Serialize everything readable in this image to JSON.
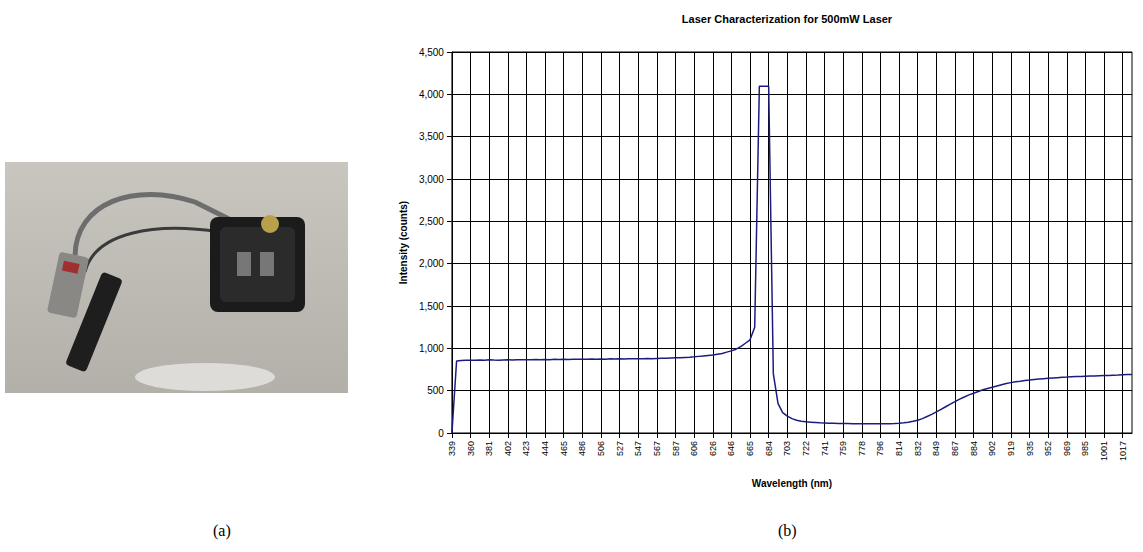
{
  "panels": {
    "a": {
      "label": "(a)"
    },
    "b": {
      "label": "(b)"
    }
  },
  "chart_data": {
    "type": "line",
    "title": "Laser Characterization for 500mW Laser",
    "x_label": "Wavelength (nm)",
    "y_label": "Intensity (counts)",
    "categories": [
      "339",
      null,
      null,
      null,
      "360",
      null,
      null,
      null,
      "381",
      null,
      null,
      null,
      "402",
      null,
      null,
      null,
      "423",
      null,
      null,
      null,
      "444",
      null,
      null,
      null,
      "465",
      null,
      null,
      null,
      "486",
      null,
      null,
      null,
      "506",
      null,
      null,
      null,
      "527",
      null,
      null,
      null,
      "547",
      null,
      null,
      null,
      "567",
      null,
      null,
      null,
      "587",
      null,
      null,
      null,
      "606",
      null,
      null,
      null,
      "626",
      null,
      null,
      null,
      "646",
      null,
      null,
      null,
      "665",
      null,
      null,
      null,
      "684",
      null,
      null,
      null,
      "703",
      null,
      null,
      null,
      "722",
      null,
      null,
      null,
      "741",
      null,
      null,
      null,
      "759",
      null,
      null,
      null,
      "778",
      null,
      null,
      null,
      "796",
      null,
      null,
      null,
      "814",
      null,
      null,
      null,
      "832",
      null,
      null,
      null,
      "849",
      null,
      null,
      null,
      "867",
      null,
      null,
      null,
      "884",
      null,
      null,
      null,
      "902",
      null,
      null,
      null,
      "919",
      null,
      null,
      null,
      "935",
      null,
      null,
      null,
      "952",
      null,
      null,
      null,
      "969",
      null,
      null,
      null,
      "985",
      null,
      null,
      null,
      "1001",
      null,
      null,
      null,
      "1017",
      null,
      null
    ],
    "values": [
      0,
      850,
      855,
      858,
      860,
      858,
      862,
      860,
      865,
      862,
      860,
      863,
      865,
      862,
      866,
      864,
      866,
      864,
      868,
      866,
      868,
      866,
      870,
      868,
      870,
      868,
      872,
      870,
      872,
      870,
      874,
      872,
      874,
      872,
      876,
      874,
      876,
      874,
      878,
      876,
      878,
      876,
      880,
      878,
      880,
      882,
      884,
      886,
      888,
      890,
      893,
      896,
      900,
      905,
      910,
      915,
      920,
      930,
      940,
      955,
      970,
      990,
      1020,
      1060,
      1100,
      1250,
      4095,
      4095,
      4095,
      700,
      350,
      240,
      200,
      170,
      150,
      140,
      132,
      128,
      124,
      120,
      118,
      116,
      115,
      113,
      112,
      111,
      110,
      110,
      109,
      108,
      108,
      108,
      108,
      108,
      110,
      112,
      115,
      120,
      128,
      138,
      150,
      170,
      195,
      220,
      250,
      280,
      310,
      340,
      370,
      400,
      425,
      450,
      470,
      490,
      510,
      525,
      540,
      555,
      570,
      585,
      595,
      605,
      612,
      620,
      625,
      632,
      638,
      642,
      646,
      650,
      654,
      658,
      660,
      663,
      666,
      668,
      670,
      672,
      674,
      676,
      678,
      680,
      682,
      684,
      688,
      690,
      692
    ],
    "color": "#1c1c80",
    "ylim": [
      0,
      4500
    ],
    "yticks": [
      0,
      500,
      1000,
      1500,
      2000,
      2500,
      3000,
      3500,
      4000,
      4500
    ],
    "grid": true
  }
}
